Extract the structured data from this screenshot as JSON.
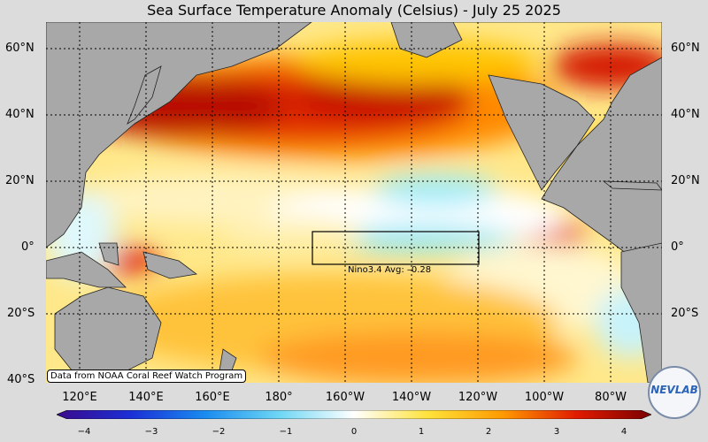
{
  "title": "Sea Surface Temperature Anomaly (Celsius) - July 25 2025",
  "source_note": "Data from NOAA Coral Reef Watch Program",
  "nino_box": {
    "label": "Nino3.4 Avg: –0.28",
    "lon_range": [
      "170°W",
      "120°W"
    ],
    "lat_range": [
      "5°S",
      "5°N"
    ]
  },
  "lat_labels_left": [
    "60°N",
    "40°N",
    "20°N",
    "0°",
    "20°S",
    "40°S"
  ],
  "lat_labels_right": [
    "60°N",
    "40°N",
    "20°N",
    "0°",
    "20°S"
  ],
  "lon_labels": [
    "120°E",
    "140°E",
    "160°E",
    "180°",
    "160°W",
    "140°W",
    "120°W",
    "100°W",
    "80°W"
  ],
  "colorbar": {
    "ticks": [
      "−4",
      "−3",
      "−2",
      "−1",
      "0",
      "1",
      "2",
      "3",
      "4"
    ],
    "min": -4,
    "max": 4,
    "colors": [
      "#3a0a8c",
      "#1b2fd6",
      "#1a8cf0",
      "#6fd7f5",
      "#ffffff",
      "#ffe23a",
      "#ff9a00",
      "#e01b00",
      "#7a0000"
    ]
  },
  "logo_text": "NEVLAB",
  "land_color": "#a8a8a8",
  "ocean_colors": {
    "warm": "#ffb300",
    "hot": "#d40d00",
    "cool": "#7fe3f7",
    "neutral": "#fff3b0"
  }
}
